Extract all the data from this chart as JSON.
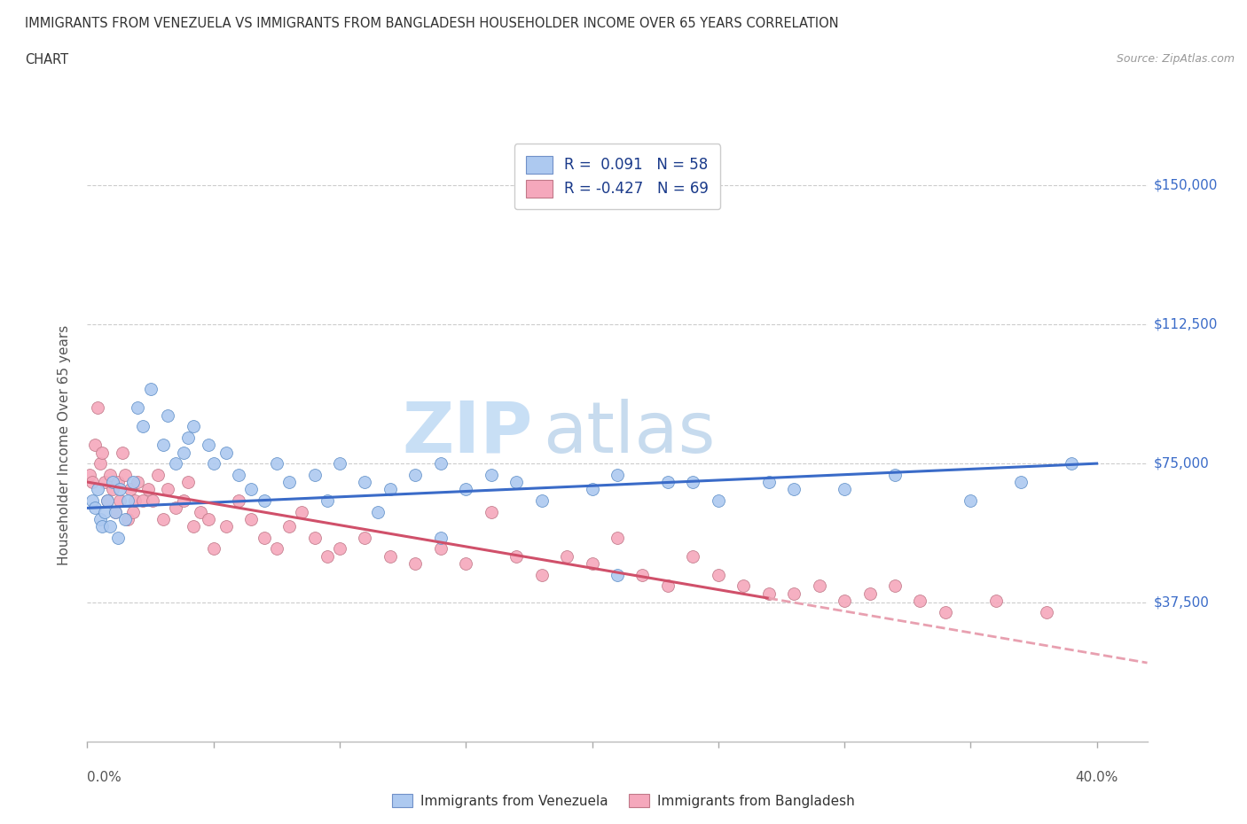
{
  "title_line1": "IMMIGRANTS FROM VENEZUELA VS IMMIGRANTS FROM BANGLADESH HOUSEHOLDER INCOME OVER 65 YEARS CORRELATION",
  "title_line2": "CHART",
  "source_text": "Source: ZipAtlas.com",
  "ylabel": "Householder Income Over 65 years",
  "xlim": [
    0.0,
    0.42
  ],
  "ylim": [
    0,
    160000
  ],
  "yticks": [
    0,
    37500,
    75000,
    112500,
    150000
  ],
  "ytick_labels": [
    "",
    "$37,500",
    "$75,000",
    "$112,500",
    "$150,000"
  ],
  "xticks": [
    0.0,
    0.05,
    0.1,
    0.15,
    0.2,
    0.25,
    0.3,
    0.35,
    0.4
  ],
  "watermark_zip": "ZIP",
  "watermark_atlas": "atlas",
  "legend_text1": "R =  0.091   N = 58",
  "legend_text2": "R = -0.427   N = 69",
  "color_venezuela": "#adc9f0",
  "color_bangladesh": "#f5a8bc",
  "color_line_venezuela": "#3a6bc8",
  "color_line_bangladesh": "#d0506a",
  "color_line_bangladesh_dash": "#e8a0b0",
  "color_ytick_labels": "#3a6bc8",
  "color_title": "#333333",
  "color_source": "#999999",
  "color_grid": "#cccccc",
  "venezuela_x": [
    0.002,
    0.003,
    0.004,
    0.005,
    0.006,
    0.007,
    0.008,
    0.009,
    0.01,
    0.011,
    0.012,
    0.013,
    0.015,
    0.016,
    0.018,
    0.02,
    0.022,
    0.025,
    0.03,
    0.032,
    0.035,
    0.038,
    0.04,
    0.042,
    0.048,
    0.05,
    0.055,
    0.06,
    0.065,
    0.07,
    0.075,
    0.08,
    0.09,
    0.1,
    0.11,
    0.12,
    0.13,
    0.14,
    0.15,
    0.16,
    0.17,
    0.18,
    0.2,
    0.21,
    0.23,
    0.25,
    0.27,
    0.3,
    0.32,
    0.35,
    0.37,
    0.39,
    0.21,
    0.24,
    0.28,
    0.14,
    0.095,
    0.115
  ],
  "venezuela_y": [
    65000,
    63000,
    68000,
    60000,
    58000,
    62000,
    65000,
    58000,
    70000,
    62000,
    55000,
    68000,
    60000,
    65000,
    70000,
    90000,
    85000,
    95000,
    80000,
    88000,
    75000,
    78000,
    82000,
    85000,
    80000,
    75000,
    78000,
    72000,
    68000,
    65000,
    75000,
    70000,
    72000,
    75000,
    70000,
    68000,
    72000,
    75000,
    68000,
    72000,
    70000,
    65000,
    68000,
    72000,
    70000,
    65000,
    70000,
    68000,
    72000,
    65000,
    70000,
    75000,
    45000,
    70000,
    68000,
    55000,
    65000,
    62000
  ],
  "bangladesh_x": [
    0.001,
    0.002,
    0.003,
    0.004,
    0.005,
    0.006,
    0.007,
    0.008,
    0.009,
    0.01,
    0.011,
    0.012,
    0.013,
    0.014,
    0.015,
    0.016,
    0.017,
    0.018,
    0.019,
    0.02,
    0.022,
    0.024,
    0.026,
    0.028,
    0.03,
    0.032,
    0.035,
    0.038,
    0.04,
    0.042,
    0.045,
    0.048,
    0.05,
    0.055,
    0.06,
    0.065,
    0.07,
    0.075,
    0.08,
    0.085,
    0.09,
    0.095,
    0.1,
    0.11,
    0.12,
    0.13,
    0.14,
    0.15,
    0.16,
    0.17,
    0.18,
    0.19,
    0.2,
    0.21,
    0.22,
    0.23,
    0.24,
    0.25,
    0.26,
    0.27,
    0.28,
    0.29,
    0.3,
    0.31,
    0.32,
    0.33,
    0.34,
    0.36,
    0.38
  ],
  "bangladesh_y": [
    72000,
    70000,
    80000,
    90000,
    75000,
    78000,
    70000,
    65000,
    72000,
    68000,
    62000,
    70000,
    65000,
    78000,
    72000,
    60000,
    68000,
    62000,
    65000,
    70000,
    65000,
    68000,
    65000,
    72000,
    60000,
    68000,
    63000,
    65000,
    70000,
    58000,
    62000,
    60000,
    52000,
    58000,
    65000,
    60000,
    55000,
    52000,
    58000,
    62000,
    55000,
    50000,
    52000,
    55000,
    50000,
    48000,
    52000,
    48000,
    62000,
    50000,
    45000,
    50000,
    48000,
    55000,
    45000,
    42000,
    50000,
    45000,
    42000,
    40000,
    40000,
    42000,
    38000,
    40000,
    42000,
    38000,
    35000,
    38000,
    35000
  ]
}
